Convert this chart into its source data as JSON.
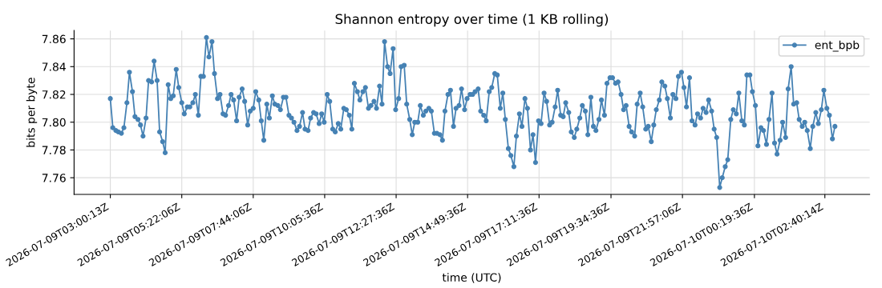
{
  "chart_data": {
    "type": "line",
    "title": "Shannon entropy over time (1 KB rolling)",
    "xlabel": "time (UTC)",
    "ylabel": "bits per byte",
    "xlim": [
      "2026-07-09T01:48",
      "2026-07-10T04:09"
    ],
    "ylim": [
      7.748,
      7.866
    ],
    "xticks": [
      {
        "value": "2026-07-09T03:00",
        "label": "2026-07-09T03:00:13Z"
      },
      {
        "value": "2026-07-09T05:22",
        "label": "2026-07-09T05:22:06Z"
      },
      {
        "value": "2026-07-09T07:44",
        "label": "2026-07-09T07:44:06Z"
      },
      {
        "value": "2026-07-09T10:06",
        "label": "2026-07-09T10:05:36Z"
      },
      {
        "value": "2026-07-09T12:28",
        "label": "2026-07-09T12:27:36Z"
      },
      {
        "value": "2026-07-09T14:50",
        "label": "2026-07-09T14:49:36Z"
      },
      {
        "value": "2026-07-09T17:12",
        "label": "2026-07-09T17:11:36Z"
      },
      {
        "value": "2026-07-09T19:35",
        "label": "2026-07-09T19:34:36Z"
      },
      {
        "value": "2026-07-09T21:57",
        "label": "2026-07-09T21:57:06Z"
      },
      {
        "value": "2026-07-10T00:20",
        "label": "2026-07-10T00:19:36Z"
      },
      {
        "value": "2026-07-10T02:40",
        "label": "2026-07-10T02:40:14Z"
      }
    ],
    "yticks": [
      {
        "value": 7.76,
        "label": "7.76"
      },
      {
        "value": 7.78,
        "label": "7.78"
      },
      {
        "value": 7.8,
        "label": "7.80"
      },
      {
        "value": 7.82,
        "label": "7.82"
      },
      {
        "value": 7.84,
        "label": "7.84"
      },
      {
        "value": 7.86,
        "label": "7.86"
      }
    ],
    "grid": true,
    "legend": "top right",
    "marker": "circle",
    "line_style": "solid",
    "series": [
      {
        "name": "ent_bpb",
        "color": "#4682b4",
        "x": [
          "2026-07-09T03:00",
          "2026-07-09T03:05",
          "2026-07-09T03:11",
          "2026-07-09T03:16",
          "2026-07-09T03:22",
          "2026-07-09T03:27",
          "2026-07-09T03:33",
          "2026-07-09T03:38",
          "2026-07-09T03:44",
          "2026-07-09T03:49",
          "2026-07-09T03:55",
          "2026-07-09T04:00",
          "2026-07-09T04:05",
          "2026-07-09T04:11",
          "2026-07-09T04:16",
          "2026-07-09T04:22",
          "2026-07-09T04:27",
          "2026-07-09T04:33",
          "2026-07-09T04:38",
          "2026-07-09T04:44",
          "2026-07-09T04:49",
          "2026-07-09T04:55",
          "2026-07-09T05:00",
          "2026-07-09T05:05",
          "2026-07-09T05:11",
          "2026-07-09T05:16",
          "2026-07-09T05:22",
          "2026-07-09T05:27",
          "2026-07-09T05:33",
          "2026-07-09T05:38",
          "2026-07-09T05:44",
          "2026-07-09T05:49",
          "2026-07-09T05:55",
          "2026-07-09T06:00",
          "2026-07-09T06:05",
          "2026-07-09T06:11",
          "2026-07-09T06:16",
          "2026-07-09T06:22",
          "2026-07-09T06:27",
          "2026-07-09T06:33",
          "2026-07-09T06:38",
          "2026-07-09T06:44",
          "2026-07-09T06:49",
          "2026-07-09T06:55",
          "2026-07-09T07:00",
          "2026-07-09T07:05",
          "2026-07-09T07:11",
          "2026-07-09T07:16",
          "2026-07-09T07:22",
          "2026-07-09T07:27",
          "2026-07-09T07:33",
          "2026-07-09T07:38",
          "2026-07-09T07:44",
          "2026-07-09T07:49",
          "2026-07-09T07:55",
          "2026-07-09T08:00",
          "2026-07-09T08:05",
          "2026-07-09T08:11",
          "2026-07-09T08:16",
          "2026-07-09T08:22",
          "2026-07-09T08:27",
          "2026-07-09T08:33",
          "2026-07-09T08:38",
          "2026-07-09T08:44",
          "2026-07-09T08:49",
          "2026-07-09T08:55",
          "2026-07-09T09:00",
          "2026-07-09T09:05",
          "2026-07-09T09:11",
          "2026-07-09T09:16",
          "2026-07-09T09:22",
          "2026-07-09T09:27",
          "2026-07-09T09:33",
          "2026-07-09T09:38",
          "2026-07-09T09:44",
          "2026-07-09T09:49",
          "2026-07-09T09:55",
          "2026-07-09T10:00",
          "2026-07-09T10:05",
          "2026-07-09T10:11",
          "2026-07-09T10:16",
          "2026-07-09T10:22",
          "2026-07-09T10:27",
          "2026-07-09T10:33",
          "2026-07-09T10:38",
          "2026-07-09T10:44",
          "2026-07-09T10:49",
          "2026-07-09T10:55",
          "2026-07-09T11:00",
          "2026-07-09T11:05",
          "2026-07-09T11:11",
          "2026-07-09T11:16",
          "2026-07-09T11:22",
          "2026-07-09T11:27",
          "2026-07-09T11:33",
          "2026-07-09T11:38",
          "2026-07-09T11:44",
          "2026-07-09T11:49",
          "2026-07-09T11:55",
          "2026-07-09T12:00",
          "2026-07-09T12:05",
          "2026-07-09T12:11",
          "2026-07-09T12:16",
          "2026-07-09T12:22",
          "2026-07-09T12:27",
          "2026-07-09T12:33",
          "2026-07-09T12:38",
          "2026-07-09T12:44",
          "2026-07-09T12:49",
          "2026-07-09T12:55",
          "2026-07-09T13:00",
          "2026-07-09T13:05",
          "2026-07-09T13:11",
          "2026-07-09T13:16",
          "2026-07-09T13:22",
          "2026-07-09T13:27",
          "2026-07-09T13:33",
          "2026-07-09T13:38",
          "2026-07-09T13:44",
          "2026-07-09T13:49",
          "2026-07-09T13:55",
          "2026-07-09T14:00",
          "2026-07-09T14:05",
          "2026-07-09T14:11",
          "2026-07-09T14:16",
          "2026-07-09T14:22",
          "2026-07-09T14:27",
          "2026-07-09T14:33",
          "2026-07-09T14:38",
          "2026-07-09T14:44",
          "2026-07-09T14:49",
          "2026-07-09T14:55",
          "2026-07-09T15:00",
          "2026-07-09T15:05",
          "2026-07-09T15:11",
          "2026-07-09T15:16",
          "2026-07-09T15:22",
          "2026-07-09T15:27",
          "2026-07-09T15:33",
          "2026-07-09T15:38",
          "2026-07-09T15:44",
          "2026-07-09T15:49",
          "2026-07-09T15:55",
          "2026-07-09T16:00",
          "2026-07-09T16:05",
          "2026-07-09T16:11",
          "2026-07-09T16:16",
          "2026-07-09T16:22",
          "2026-07-09T16:27",
          "2026-07-09T16:33",
          "2026-07-09T16:38",
          "2026-07-09T16:44",
          "2026-07-09T16:49",
          "2026-07-09T16:55",
          "2026-07-09T17:00",
          "2026-07-09T17:05",
          "2026-07-09T17:11",
          "2026-07-09T17:16",
          "2026-07-09T17:22",
          "2026-07-09T17:27",
          "2026-07-09T17:33",
          "2026-07-09T17:38",
          "2026-07-09T17:44",
          "2026-07-09T17:49",
          "2026-07-09T17:55",
          "2026-07-09T18:00",
          "2026-07-09T18:05",
          "2026-07-09T18:11",
          "2026-07-09T18:16",
          "2026-07-09T18:22",
          "2026-07-09T18:27",
          "2026-07-09T18:33",
          "2026-07-09T18:38",
          "2026-07-09T18:44",
          "2026-07-09T18:49",
          "2026-07-09T18:55",
          "2026-07-09T19:00",
          "2026-07-09T19:05",
          "2026-07-09T19:11",
          "2026-07-09T19:16",
          "2026-07-09T19:22",
          "2026-07-09T19:27",
          "2026-07-09T19:33",
          "2026-07-09T19:38",
          "2026-07-09T19:44",
          "2026-07-09T19:49",
          "2026-07-09T19:55",
          "2026-07-09T20:00",
          "2026-07-09T20:05",
          "2026-07-09T20:11",
          "2026-07-09T20:16",
          "2026-07-09T20:22",
          "2026-07-09T20:27",
          "2026-07-09T20:33",
          "2026-07-09T20:38",
          "2026-07-09T20:44",
          "2026-07-09T20:49",
          "2026-07-09T20:55",
          "2026-07-09T21:00",
          "2026-07-09T21:05",
          "2026-07-09T21:11",
          "2026-07-09T21:16",
          "2026-07-09T21:22",
          "2026-07-09T21:27",
          "2026-07-09T21:33",
          "2026-07-09T21:38",
          "2026-07-09T21:44",
          "2026-07-09T21:49",
          "2026-07-09T21:55",
          "2026-07-09T22:00",
          "2026-07-09T22:05",
          "2026-07-09T22:11",
          "2026-07-09T22:16",
          "2026-07-09T22:22",
          "2026-07-09T22:27",
          "2026-07-09T22:33",
          "2026-07-09T22:38",
          "2026-07-09T22:44",
          "2026-07-09T22:49",
          "2026-07-09T22:55",
          "2026-07-09T23:00",
          "2026-07-09T23:05",
          "2026-07-09T23:11",
          "2026-07-09T23:16",
          "2026-07-09T23:22",
          "2026-07-09T23:27",
          "2026-07-09T23:33",
          "2026-07-09T23:38",
          "2026-07-09T23:44",
          "2026-07-09T23:49",
          "2026-07-09T23:55",
          "2026-07-10T00:00",
          "2026-07-10T00:05",
          "2026-07-10T00:11",
          "2026-07-10T00:16",
          "2026-07-10T00:22",
          "2026-07-10T00:27",
          "2026-07-10T00:33",
          "2026-07-10T00:38",
          "2026-07-10T00:44",
          "2026-07-10T00:49",
          "2026-07-10T00:55",
          "2026-07-10T01:00",
          "2026-07-10T01:05",
          "2026-07-10T01:11",
          "2026-07-10T01:16",
          "2026-07-10T01:22",
          "2026-07-10T01:27",
          "2026-07-10T01:33",
          "2026-07-10T01:38",
          "2026-07-10T01:44",
          "2026-07-10T01:49",
          "2026-07-10T01:55",
          "2026-07-10T02:00",
          "2026-07-10T02:05",
          "2026-07-10T02:11",
          "2026-07-10T02:16",
          "2026-07-10T02:22",
          "2026-07-10T02:27",
          "2026-07-10T02:33",
          "2026-07-10T02:38",
          "2026-07-10T02:44",
          "2026-07-10T02:49",
          "2026-07-10T02:55",
          "2026-07-10T03:00"
        ],
        "values": [
          7.817,
          7.796,
          7.794,
          7.793,
          7.792,
          7.796,
          7.814,
          7.836,
          7.822,
          7.804,
          7.802,
          7.798,
          7.79,
          7.803,
          7.83,
          7.829,
          7.844,
          7.83,
          7.793,
          7.786,
          7.778,
          7.827,
          7.817,
          7.819,
          7.838,
          7.825,
          7.814,
          7.806,
          7.811,
          7.811,
          7.814,
          7.82,
          7.805,
          7.833,
          7.833,
          7.861,
          7.847,
          7.858,
          7.835,
          7.817,
          7.82,
          7.806,
          7.805,
          7.812,
          7.82,
          7.816,
          7.801,
          7.818,
          7.824,
          7.815,
          7.798,
          7.808,
          7.81,
          7.822,
          7.816,
          7.801,
          7.787,
          7.813,
          7.803,
          7.819,
          7.813,
          7.812,
          7.809,
          7.818,
          7.818,
          7.805,
          7.803,
          7.8,
          7.794,
          7.797,
          7.807,
          7.795,
          7.794,
          7.803,
          7.807,
          7.806,
          7.799,
          7.806,
          7.8,
          7.82,
          7.815,
          7.795,
          7.793,
          7.799,
          7.795,
          7.81,
          7.809,
          7.805,
          7.795,
          7.828,
          7.822,
          7.816,
          7.822,
          7.825,
          7.81,
          7.812,
          7.815,
          7.81,
          7.826,
          7.813,
          7.858,
          7.84,
          7.835,
          7.853,
          7.809,
          7.817,
          7.84,
          7.841,
          7.813,
          7.802,
          7.791,
          7.8,
          7.8,
          7.812,
          7.805,
          7.808,
          7.81,
          7.808,
          7.792,
          7.792,
          7.791,
          7.787,
          7.808,
          7.82,
          7.823,
          7.797,
          7.81,
          7.812,
          7.824,
          7.809,
          7.817,
          7.82,
          7.82,
          7.822,
          7.824,
          7.808,
          7.805,
          7.801,
          7.822,
          7.825,
          7.835,
          7.834,
          7.81,
          7.821,
          7.802,
          7.781,
          7.776,
          7.768,
          7.79,
          7.806,
          7.797,
          7.817,
          7.81,
          7.78,
          7.791,
          7.771,
          7.801,
          7.799,
          7.821,
          7.815,
          7.798,
          7.8,
          7.811,
          7.823,
          7.805,
          7.804,
          7.814,
          7.807,
          7.793,
          7.789,
          7.795,
          7.803,
          7.812,
          7.808,
          7.791,
          7.818,
          7.797,
          7.794,
          7.802,
          7.816,
          7.805,
          7.828,
          7.832,
          7.832,
          7.828,
          7.829,
          7.82,
          7.809,
          7.812,
          7.797,
          7.793,
          7.79,
          7.813,
          7.821,
          7.811,
          7.795,
          7.797,
          7.786,
          7.798,
          7.809,
          7.816,
          7.829,
          7.826,
          7.817,
          7.803,
          7.82,
          7.817,
          7.833,
          7.836,
          7.825,
          7.811,
          7.832,
          7.801,
          7.798,
          7.806,
          7.803,
          7.81,
          7.807,
          7.816,
          7.808,
          7.795,
          7.789,
          7.753,
          7.76,
          7.768,
          7.773,
          7.802,
          7.809,
          7.806,
          7.821,
          7.801,
          7.798,
          7.834,
          7.834,
          7.822,
          7.812,
          7.783,
          7.796,
          7.794,
          7.784,
          7.802,
          7.821,
          7.785,
          7.777,
          7.787,
          7.8,
          7.789,
          7.824,
          7.84,
          7.813,
          7.814,
          7.802,
          7.797,
          7.8,
          7.794,
          7.781,
          7.797,
          7.807,
          7.799,
          7.809,
          7.823,
          7.81,
          7.805,
          7.788,
          7.797
        ]
      }
    ]
  }
}
